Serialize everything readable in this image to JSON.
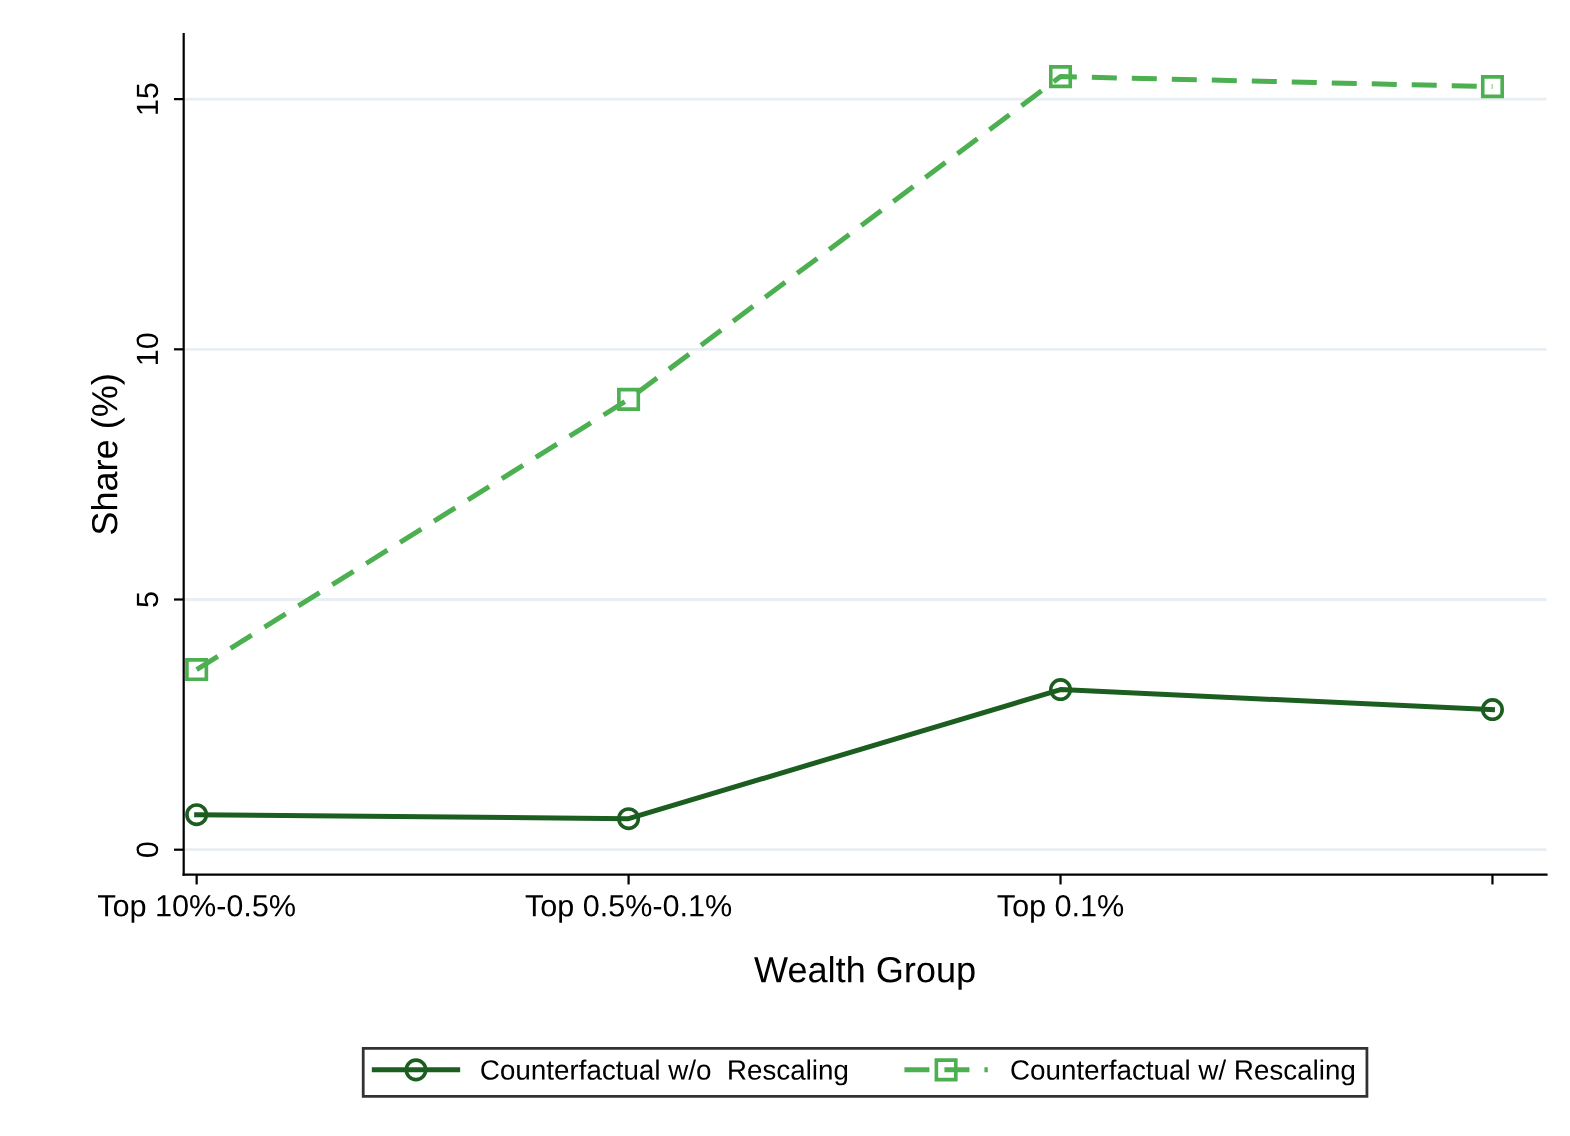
{
  "chart_data": {
    "type": "line",
    "xlabel": "Wealth Group",
    "ylabel": "Share (%)",
    "categories": [
      "Top 10%-0.5%",
      "Top 0.5%-0.1%",
      "Top 0.1%",
      null
    ],
    "series": [
      {
        "name": "Counterfactual w/o  Rescaling",
        "color": "#1b5e20",
        "values": [
          0.7,
          0.62,
          3.2,
          2.8
        ],
        "marker": "circle",
        "line_style": "solid"
      },
      {
        "name": "Counterfactual w/ Rescaling",
        "color": "#4caf50",
        "values": [
          3.6,
          9.0,
          15.45,
          15.25
        ],
        "marker": "square",
        "line_style": "dashed"
      }
    ],
    "ylim": [
      -0.5,
      16.3
    ],
    "yticks": [
      0,
      5,
      10,
      15
    ],
    "grid": "y",
    "legend": "bottom"
  }
}
